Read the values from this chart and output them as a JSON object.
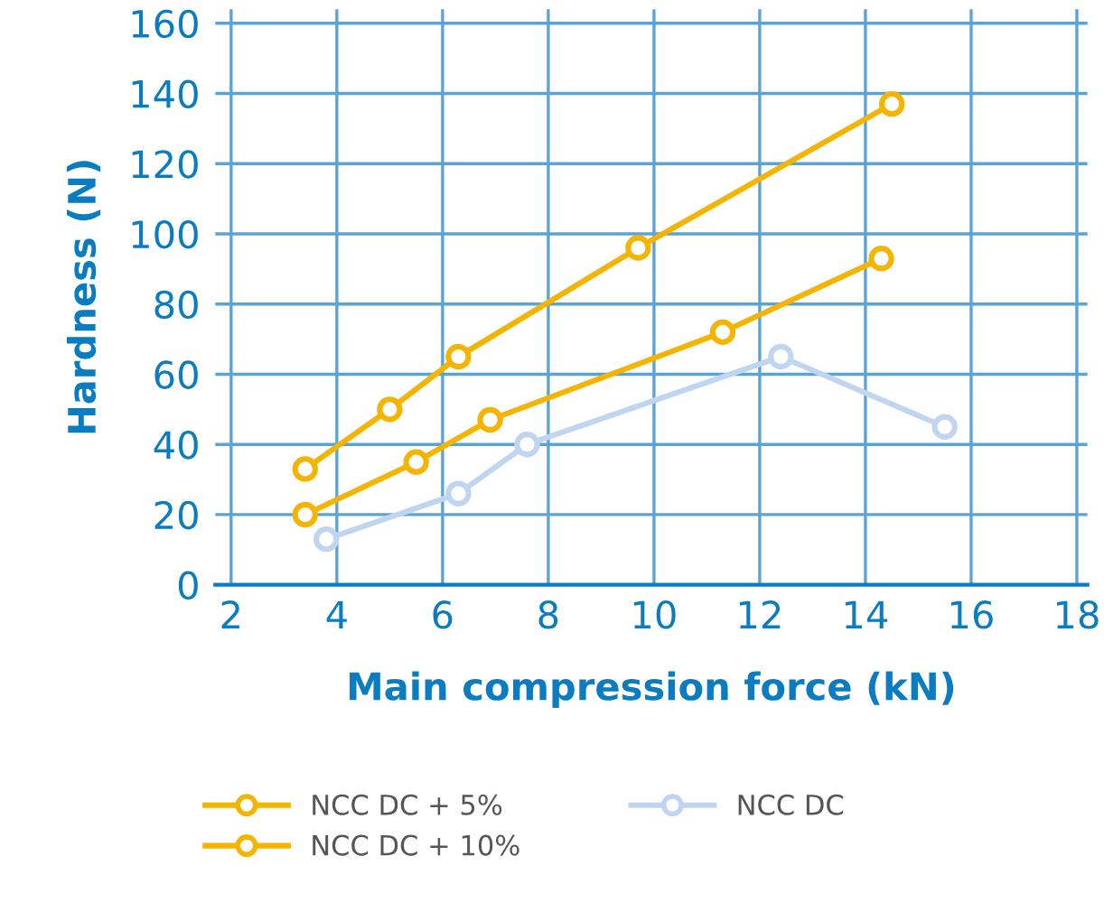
{
  "chart_data": {
    "type": "line",
    "xlabel": "Main compression force (kN)",
    "ylabel": "Hardness (N)",
    "xlim": [
      1.7,
      18.2
    ],
    "xticks": [
      2,
      4,
      6,
      8,
      10,
      12,
      14,
      16,
      18
    ],
    "ylim": [
      0,
      164
    ],
    "yticks": [
      0,
      20,
      40,
      60,
      80,
      100,
      120,
      140,
      160
    ],
    "grid": true,
    "legend": "bottom",
    "marker": "circle",
    "line_style": "solid",
    "series": [
      {
        "name": "NCC DC + 5%",
        "color": "#f5b400",
        "x": [
          3.4,
          5.5,
          6.9,
          11.3,
          14.3
        ],
        "values": [
          20,
          35,
          47,
          72,
          93
        ]
      },
      {
        "name": "NCC DC + 10%",
        "color": "#f5b400",
        "x": [
          3.4,
          5.0,
          6.3,
          9.7,
          14.5
        ],
        "values": [
          33,
          50,
          65,
          96,
          137
        ]
      },
      {
        "name": "NCC DC",
        "color": "#c0d5ef",
        "x": [
          3.8,
          6.3,
          7.6,
          12.4,
          15.5
        ],
        "values": [
          13,
          26,
          40,
          65,
          45
        ]
      }
    ]
  }
}
